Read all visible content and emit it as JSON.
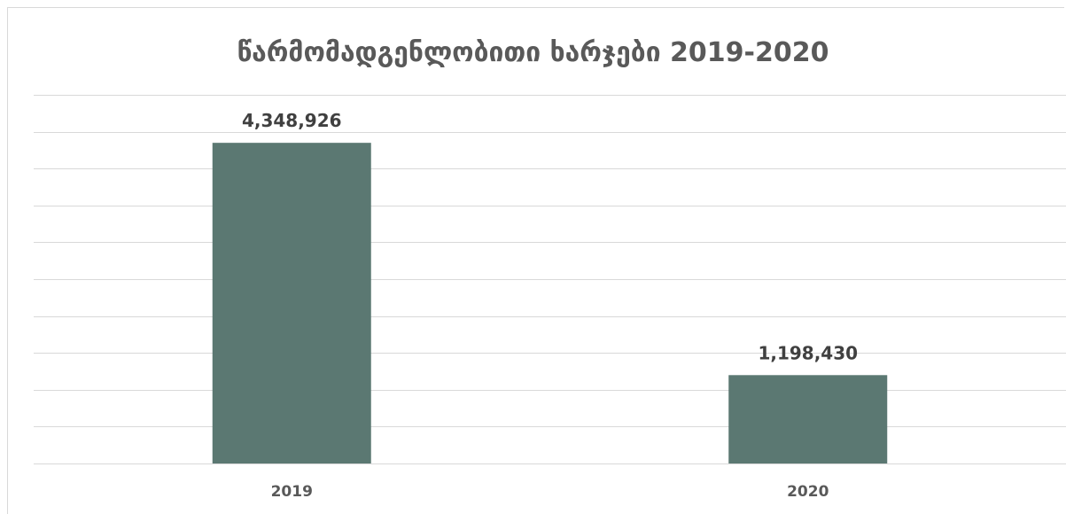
{
  "chart_data": {
    "type": "bar",
    "title": "წარმომადგენლობითი ხარჯები 2019-2020",
    "categories": [
      "2019",
      "2020"
    ],
    "values": [
      4348926,
      1198430
    ],
    "value_labels": [
      "4,348,926",
      "1,198,430"
    ],
    "xlabel": "",
    "ylabel": "",
    "ylim": [
      0,
      5000000
    ],
    "grid": true,
    "legend": "none",
    "bar_color": "#5b7872"
  }
}
